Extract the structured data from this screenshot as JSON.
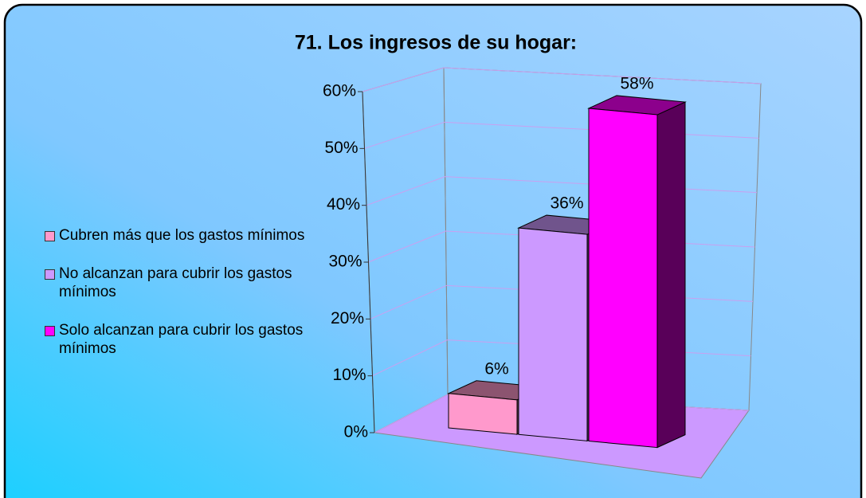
{
  "chart_data": {
    "type": "bar3d",
    "title": "71. Los ingresos de su hogar:",
    "ylim": [
      0,
      60
    ],
    "yticks": [
      {
        "value": 0,
        "label": "0%"
      },
      {
        "value": 10,
        "label": "10%"
      },
      {
        "value": 20,
        "label": "20%"
      },
      {
        "value": 30,
        "label": "30%"
      },
      {
        "value": 40,
        "label": "40%"
      },
      {
        "value": 50,
        "label": "50%"
      },
      {
        "value": 60,
        "label": "60%"
      }
    ],
    "grid": true,
    "legend": "left",
    "series": [
      {
        "name": "Cubren más que los gastos mínimos",
        "color": "#ff99cc",
        "values": [
          6
        ],
        "value_labels": [
          "6%"
        ]
      },
      {
        "name": "No alcanzan para cubrir los gastos mínimos",
        "color": "#cc99ff",
        "values": [
          36
        ],
        "value_labels": [
          "36%"
        ]
      },
      {
        "name": "Solo alcanzan para cubrir los gastos mínimos",
        "color": "#ff00ff",
        "values": [
          58
        ],
        "value_labels": [
          "58%"
        ]
      }
    ]
  }
}
